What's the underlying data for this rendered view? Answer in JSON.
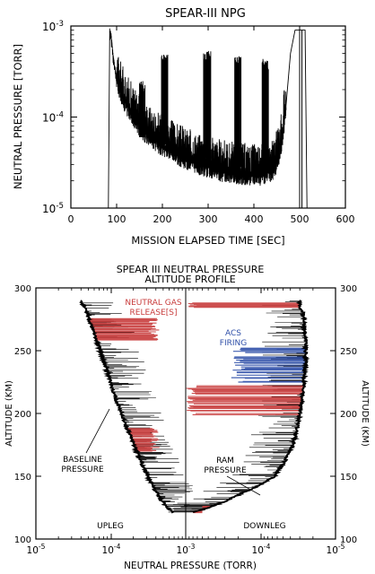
{
  "chart_data": [
    {
      "type": "line",
      "title": "SPEAR-III NPG",
      "xlabel": "MISSION ELAPSED TIME [SEC]",
      "ylabel": "NEUTRAL PRESSURE [TORR]",
      "xlim": [
        0,
        600
      ],
      "ylim": [
        1e-05,
        0.001
      ],
      "yscale": "log",
      "x_ticks": [
        "0",
        "100",
        "200",
        "300",
        "400",
        "500",
        "600"
      ],
      "y_ticks": [
        {
          "base": "10",
          "exp": "-5"
        },
        {
          "base": "10",
          "exp": "-4"
        },
        {
          "base": "10",
          "exp": "-3"
        }
      ],
      "series": [
        {
          "x": [
            82,
            85,
            88,
            92,
            96,
            100,
            110,
            120,
            130,
            140,
            150,
            160,
            170,
            180,
            190,
            200,
            220,
            240,
            260,
            280,
            300,
            320,
            340,
            360,
            380,
            400,
            420,
            440,
            450,
            460,
            470,
            480,
            490,
            500,
            505,
            512,
            516
          ],
          "y": [
            1e-05,
            0.0009,
            0.0008,
            0.0005,
            0.00035,
            0.00026,
            0.00018,
            0.00014,
            0.000115,
            9.5e-05,
            8e-05,
            7e-05,
            6.3e-05,
            5.7e-05,
            5.2e-05,
            4.8e-05,
            4.2e-05,
            3.7e-05,
            3.3e-05,
            3e-05,
            2.8e-05,
            2.6e-05,
            2.5e-05,
            2.4e-05,
            2.35e-05,
            2.3e-05,
            2.3e-05,
            2.6e-05,
            3.2e-05,
            5e-05,
            0.00013,
            0.0005,
            0.0009,
            0.0009,
            0.0009,
            0.0009,
            1e-05
          ]
        }
      ],
      "bursts": [
        {
          "x_start": 150,
          "x_end": 162,
          "y_low": 6e-05,
          "y_high": 0.00025
        },
        {
          "x_start": 198,
          "x_end": 212,
          "y_low": 5e-05,
          "y_high": 0.0005
        },
        {
          "x_start": 290,
          "x_end": 306,
          "y_low": 3.5e-05,
          "y_high": 0.00055
        },
        {
          "x_start": 358,
          "x_end": 372,
          "y_low": 2.8e-05,
          "y_high": 0.0005
        },
        {
          "x_start": 418,
          "x_end": 432,
          "y_low": 2.5e-05,
          "y_high": 0.00045
        }
      ]
    },
    {
      "type": "line",
      "title": "SPEAR III NEUTRAL PRESSURE",
      "subtitle": "ALTITUDE PROFILE",
      "xlabel": "NEUTRAL PRESSURE (TORR)",
      "ylabel": "ALTITUDE (KM)",
      "ylabel_right": "ALTITUDE (KM)",
      "ylim": [
        100,
        300
      ],
      "y_ticks": [
        "100",
        "150",
        "200",
        "250",
        "300"
      ],
      "x_ticks": [
        {
          "base": "10",
          "exp": "-5"
        },
        {
          "base": "10",
          "exp": "-4"
        },
        {
          "base": "10",
          "exp": "-3"
        },
        {
          "base": "10",
          "exp": "-4"
        },
        {
          "base": "10",
          "exp": "-5"
        }
      ],
      "panels": [
        {
          "name": "UPLEG",
          "xscale": "log",
          "xlim": [
            1e-05,
            0.001
          ],
          "altitude": [
            290,
            280,
            270,
            260,
            250,
            240,
            230,
            220,
            210,
            200,
            190,
            180,
            170,
            160,
            150,
            140,
            130,
            122
          ],
          "pressure": [
            4e-05,
            4.8e-05,
            5.5e-05,
            6.3e-05,
            7.2e-05,
            8.2e-05,
            9.3e-05,
            0.000105,
            0.00012,
            0.00014,
            0.00016,
            0.00019,
            0.00022,
            0.00026,
            0.00031,
            0.00038,
            0.00048,
            0.00065
          ]
        },
        {
          "name": "DOWNLEG",
          "xscale": "log",
          "xlim": [
            0.001,
            1e-05
          ],
          "altitude": [
            290,
            285,
            280,
            270,
            260,
            250,
            240,
            230,
            220,
            210,
            200,
            190,
            180,
            170,
            160,
            150,
            145,
            140,
            135,
            130,
            125,
            121
          ],
          "pressure": [
            3e-05,
            3e-05,
            2.7e-05,
            2.6e-05,
            2.5e-05,
            2.5e-05,
            2.5e-05,
            2.6e-05,
            2.7e-05,
            2.8e-05,
            3e-05,
            3.2e-05,
            3.5e-05,
            4e-05,
            5e-05,
            6.5e-05,
            9e-05,
            0.00013,
            0.0002,
            0.0003,
            0.0005,
            0.0008
          ]
        }
      ],
      "annotations": [
        {
          "text": "NEUTRAL GAS",
          "color": "#c83c3c"
        },
        {
          "text": "RELEASE[S]",
          "color": "#c83c3c"
        },
        {
          "text": "ACS",
          "color": "#2f4fa8"
        },
        {
          "text": "FIRING",
          "color": "#2f4fa8"
        },
        {
          "text": "BASELINE",
          "color": "#000000"
        },
        {
          "text": "PRESSURE",
          "color": "#000000"
        },
        {
          "text": "RAM",
          "color": "#000000"
        },
        {
          "text": "PRESSURE",
          "color": "#000000"
        },
        {
          "text": "UPLEG",
          "color": "#000000"
        },
        {
          "text": "DOWNLEG",
          "color": "#000000"
        }
      ],
      "colors": {
        "release": "#c83c3c",
        "acs": "#2f4fa8",
        "baseline": "#000000"
      }
    }
  ]
}
